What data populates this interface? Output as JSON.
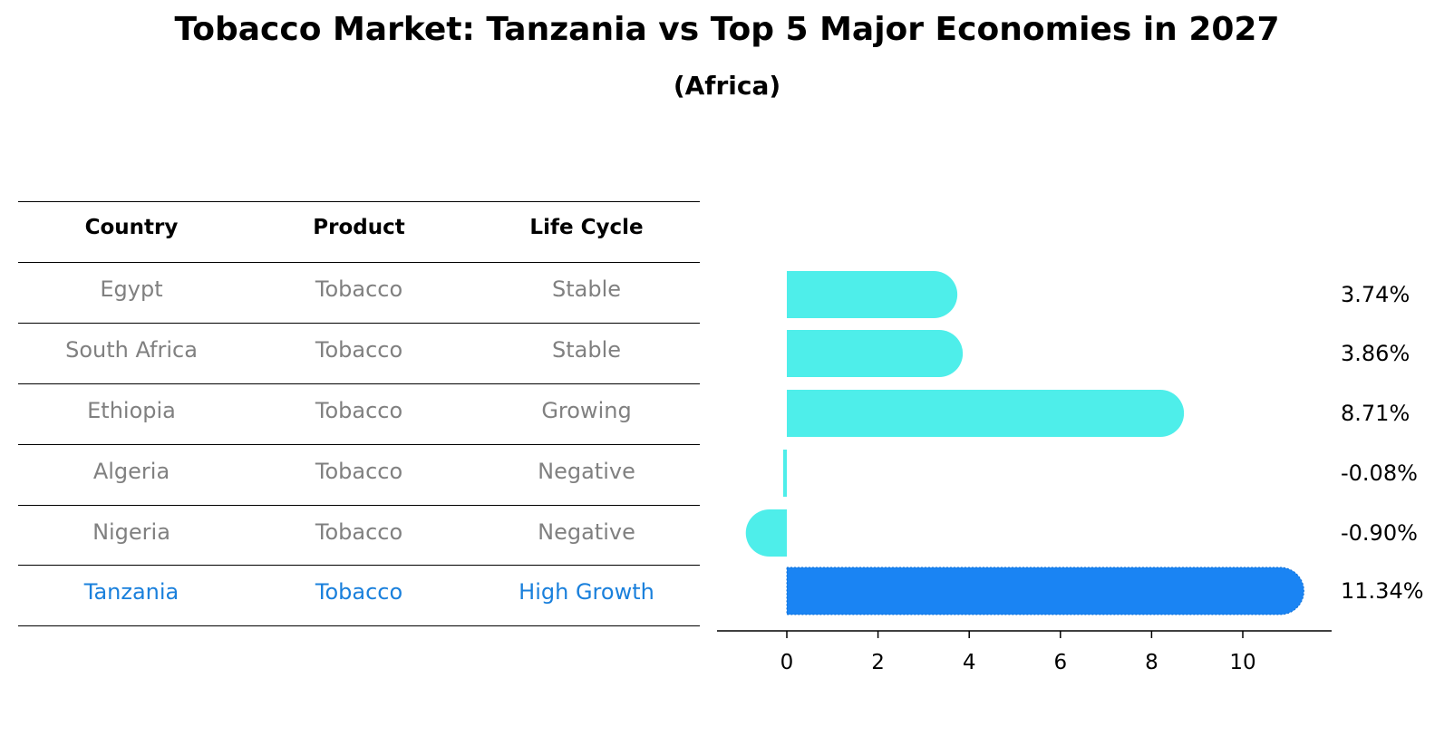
{
  "title": "Tobacco Market: Tanzania vs Top 5 Major Economies in 2027",
  "subtitle": "(Africa)",
  "table": {
    "headers": [
      "Country",
      "Product",
      "Life Cycle"
    ],
    "rows": [
      {
        "country": "Egypt",
        "product": "Tobacco",
        "life_cycle": "Stable"
      },
      {
        "country": "South Africa",
        "product": "Tobacco",
        "life_cycle": "Stable"
      },
      {
        "country": "Ethiopia",
        "product": "Tobacco",
        "life_cycle": "Growing"
      },
      {
        "country": "Algeria",
        "product": "Tobacco",
        "life_cycle": "Negative"
      },
      {
        "country": "Nigeria",
        "product": "Tobacco",
        "life_cycle": "Negative"
      },
      {
        "country": "Tanzania",
        "product": "Tobacco",
        "life_cycle": "High Growth"
      }
    ]
  },
  "chart_data": {
    "type": "bar",
    "orientation": "horizontal",
    "categories": [
      "Egypt",
      "South Africa",
      "Ethiopia",
      "Algeria",
      "Nigeria",
      "Tanzania"
    ],
    "values": [
      3.74,
      3.86,
      8.71,
      -0.08,
      -0.9,
      11.34
    ],
    "value_labels": [
      "3.74%",
      "3.86%",
      "8.71%",
      "-0.08%",
      "-0.90%",
      "11.34%"
    ],
    "xticks": [
      0,
      2,
      4,
      6,
      8,
      10
    ],
    "xlim": [
      -1.5,
      12
    ],
    "highlight": "Tanzania",
    "colors": {
      "default": "#4eeeea",
      "highlight": "#1a84f3"
    }
  }
}
